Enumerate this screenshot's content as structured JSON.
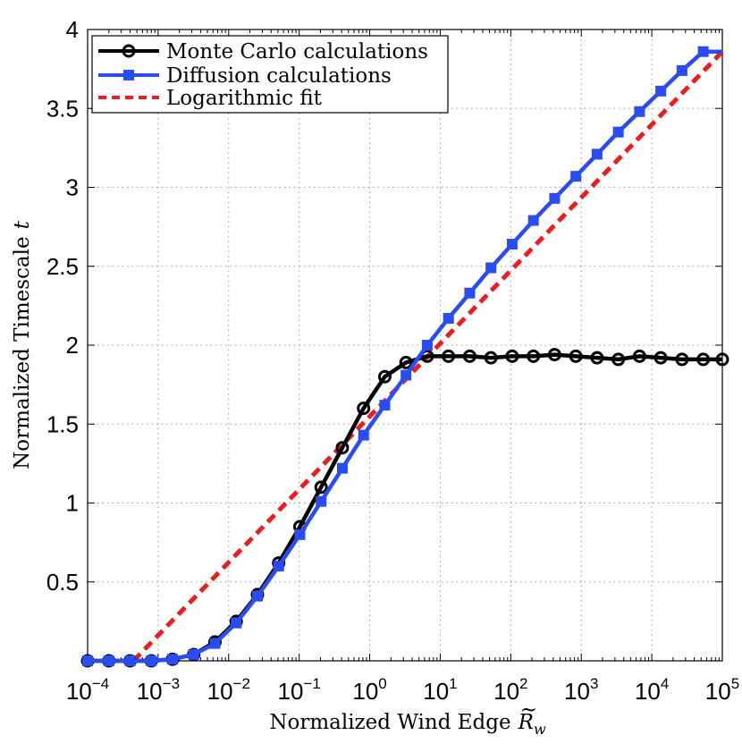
{
  "chart_data": {
    "type": "line",
    "xscale": "log",
    "xlabel_main": "Normalized Wind Edge",
    "xlabel_symbol": "R",
    "xlabel_subscript": "w",
    "ylabel_main": "Normalized Timescale",
    "ylabel_symbol": "t",
    "xlim_exp": [
      -4,
      5
    ],
    "ylim": [
      0,
      4
    ],
    "x_tick_base": "10",
    "x_tick_exponents": [
      "−4",
      "−3",
      "−2",
      "−1",
      "0",
      "1",
      "2",
      "3",
      "4",
      "5"
    ],
    "y_tick_labels": [
      "0.5",
      "1",
      "1.5",
      "2",
      "2.5",
      "3",
      "3.5",
      "4"
    ],
    "y_tick_values": [
      0.5,
      1,
      1.5,
      2,
      2.5,
      3,
      3.5,
      4
    ],
    "grid": true,
    "legend_position": "top-left",
    "series": [
      {
        "name": "Monte Carlo calculations",
        "color": "#000000",
        "marker": "circle",
        "x_exp": [
          -4,
          -3.699,
          -3.398,
          -3.097,
          -2.796,
          -2.495,
          -2.194,
          -1.893,
          -1.592,
          -1.291,
          -0.99,
          -0.689,
          -0.388,
          -0.087,
          0.214,
          0.515,
          0.816,
          1.117,
          1.418,
          1.719,
          2.02,
          2.321,
          2.622,
          2.923,
          3.224,
          3.525,
          3.826,
          4.127,
          4.428,
          4.729,
          5
        ],
        "values": [
          0.0,
          0.0,
          0.0,
          0.0,
          0.01,
          0.04,
          0.12,
          0.25,
          0.42,
          0.62,
          0.85,
          1.1,
          1.35,
          1.6,
          1.8,
          1.89,
          1.93,
          1.93,
          1.93,
          1.92,
          1.93,
          1.93,
          1.94,
          1.93,
          1.92,
          1.91,
          1.93,
          1.92,
          1.91,
          1.91,
          1.91
        ]
      },
      {
        "name": "Diffusion calculations",
        "color": "#2a4cf5",
        "marker": "square",
        "x_exp": [
          -4,
          -3.699,
          -3.398,
          -3.097,
          -2.796,
          -2.495,
          -2.194,
          -1.893,
          -1.592,
          -1.291,
          -0.99,
          -0.689,
          -0.388,
          -0.087,
          0.214,
          0.515,
          0.816,
          1.117,
          1.418,
          1.719,
          2.02,
          2.321,
          2.622,
          2.923,
          3.224,
          3.525,
          3.826,
          4.127,
          4.428,
          4.729,
          5
        ],
        "values": [
          0.0,
          0.0,
          0.0,
          0.0,
          0.01,
          0.04,
          0.11,
          0.24,
          0.41,
          0.6,
          0.8,
          1.01,
          1.22,
          1.43,
          1.62,
          1.81,
          2.0,
          2.17,
          2.33,
          2.49,
          2.64,
          2.79,
          2.93,
          3.07,
          3.21,
          3.35,
          3.48,
          3.61,
          3.74,
          3.86,
          3.86
        ]
      },
      {
        "name": "Logarithmic fit",
        "color": "#ee1c1c",
        "marker": "none",
        "dashed": true,
        "x_exp": [
          -3.35,
          5
        ],
        "values": [
          0.0,
          3.86
        ]
      }
    ]
  }
}
